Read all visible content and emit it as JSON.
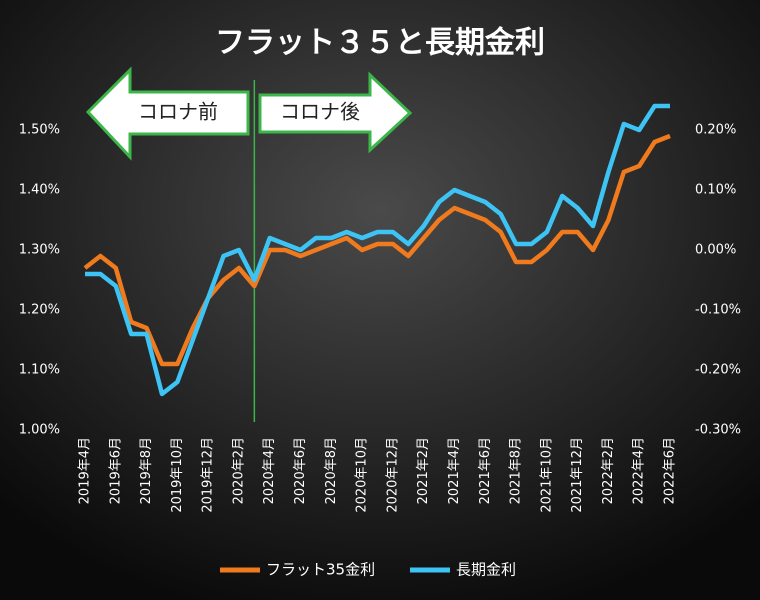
{
  "chart_data": {
    "type": "line",
    "title": "フラット３５と長期金利",
    "annotations": [
      "コロナ前",
      "コロナ後"
    ],
    "categories": [
      "2019年4月",
      null,
      "2019年6月",
      null,
      "2019年8月",
      null,
      "2019年10月",
      null,
      "2019年12月",
      null,
      "2020年2月",
      null,
      "2020年4月",
      null,
      "2020年6月",
      null,
      "2020年8月",
      null,
      "2020年10月",
      null,
      "2020年12月",
      null,
      "2021年2月",
      null,
      "2021年4月",
      null,
      "2021年6月",
      null,
      "2021年8月",
      null,
      "2021年10月",
      null,
      "2021年12月",
      null,
      "2022年2月",
      null,
      "2022年4月",
      null,
      "2022年6月"
    ],
    "series": [
      {
        "name": "フラット35金利",
        "color": "#f07a1e",
        "values": [
          1.27,
          1.29,
          1.27,
          1.18,
          1.17,
          1.11,
          1.11,
          1.17,
          1.22,
          1.25,
          1.27,
          1.24,
          1.3,
          1.3,
          1.29,
          1.3,
          1.31,
          1.32,
          1.3,
          1.31,
          1.31,
          1.29,
          1.32,
          1.35,
          1.37,
          1.36,
          1.35,
          1.33,
          1.28,
          1.28,
          1.3,
          1.33,
          1.33,
          1.3,
          1.35,
          1.43,
          1.44,
          1.48,
          1.49
        ]
      },
      {
        "name": "長期金利",
        "color": "#3ec4f4",
        "axis": "y2",
        "values": [
          -0.04,
          -0.04,
          -0.06,
          -0.14,
          -0.14,
          -0.24,
          -0.22,
          -0.15,
          -0.08,
          -0.01,
          0.0,
          -0.05,
          0.02,
          0.01,
          0.0,
          0.02,
          0.02,
          0.03,
          0.02,
          0.03,
          0.03,
          0.01,
          0.04,
          0.08,
          0.1,
          0.09,
          0.08,
          0.06,
          0.01,
          0.01,
          0.03,
          0.09,
          0.07,
          0.04,
          0.13,
          0.21,
          0.2,
          0.24,
          0.24
        ]
      }
    ],
    "ylim": [
      1.0,
      1.5
    ],
    "yticks": [
      {
        "value": 1.0,
        "label": "1.00%"
      },
      {
        "value": 1.1,
        "label": "1.10%"
      },
      {
        "value": 1.2,
        "label": "1.20%"
      },
      {
        "value": 1.3,
        "label": "1.30%"
      },
      {
        "value": 1.4,
        "label": "1.40%"
      },
      {
        "value": 1.5,
        "label": "1.50%"
      }
    ],
    "y2lim": [
      -0.3,
      0.2
    ],
    "y2ticks": [
      {
        "value": -0.3,
        "label": "-0.30%"
      },
      {
        "value": -0.2,
        "label": "-0.20%"
      },
      {
        "value": -0.1,
        "label": "-0.10%"
      },
      {
        "value": 0.0,
        "label": "0.00%"
      },
      {
        "value": 0.1,
        "label": "0.10%"
      },
      {
        "value": 0.2,
        "label": "0.20%"
      }
    ],
    "legend": "bottom",
    "grid": false
  }
}
